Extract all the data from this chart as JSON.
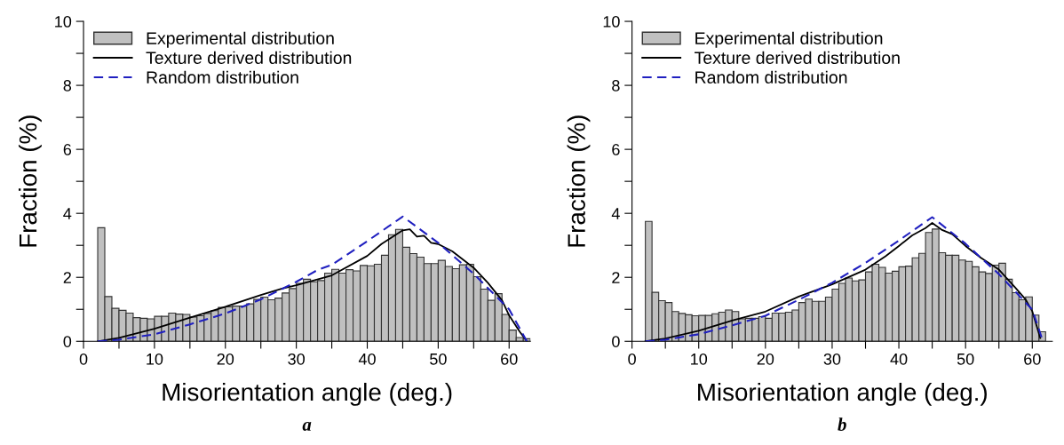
{
  "chart_data": [
    {
      "type": "histogram",
      "xlabel": "Misorientation angle (deg.)",
      "ylabel": "Fraction (%)",
      "annotations": [
        "a"
      ],
      "xlim": [
        0,
        63
      ],
      "ylim": [
        0,
        10
      ],
      "xticks": [
        0,
        {
          "value": 5,
          "label": null
        },
        10,
        {
          "value": 15,
          "label": null
        },
        20,
        {
          "value": 25,
          "label": null
        },
        30,
        {
          "value": 35,
          "label": null
        },
        40,
        {
          "value": 45,
          "label": null
        },
        50,
        {
          "value": 55,
          "label": null
        },
        60
      ],
      "yticks": [
        0,
        {
          "value": 1,
          "label": null
        },
        2,
        {
          "value": 3,
          "label": null
        },
        4,
        {
          "value": 5,
          "label": null
        },
        6,
        {
          "value": 7,
          "label": null
        },
        8,
        {
          "value": 9,
          "label": null
        },
        10
      ],
      "legend": "top left",
      "grid": false,
      "bins": [
        2,
        3,
        4,
        5,
        6,
        7,
        8,
        9,
        10,
        11,
        12,
        13,
        14,
        15,
        16,
        17,
        18,
        19,
        20,
        21,
        22,
        23,
        24,
        25,
        26,
        27,
        28,
        29,
        30,
        31,
        32,
        33,
        34,
        35,
        36,
        37,
        38,
        39,
        40,
        41,
        42,
        43,
        44,
        45,
        46,
        47,
        48,
        49,
        50,
        51,
        52,
        53,
        54,
        55,
        56,
        57,
        58,
        59,
        60,
        61,
        62,
        63
      ],
      "series": [
        {
          "name": "Experimental distribution",
          "color": "#c0c0c0",
          "values": [
            3.55,
            1.4,
            1.03,
            0.97,
            0.88,
            0.74,
            0.72,
            0.7,
            0.78,
            0.78,
            0.88,
            0.85,
            0.84,
            0.76,
            0.8,
            0.87,
            0.96,
            1.06,
            1.08,
            1.1,
            1.1,
            1.17,
            1.31,
            1.38,
            1.3,
            1.35,
            1.51,
            1.65,
            1.81,
            1.94,
            1.86,
            1.9,
            2.13,
            2.25,
            2.13,
            2.24,
            2.2,
            2.37,
            2.36,
            2.41,
            2.69,
            3.33,
            3.5,
            2.94,
            2.74,
            2.63,
            2.43,
            2.43,
            2.53,
            2.34,
            2.27,
            2.39,
            2.41,
            2.02,
            1.63,
            1.28,
            1.49,
            0.84,
            0.35,
            0.12,
            0.08
          ]
        },
        {
          "name": "Texture derived distribution",
          "type": "line",
          "color": "#000000",
          "line_style": "solid",
          "x": [
            2,
            5,
            10,
            15,
            20,
            25,
            28,
            30,
            35,
            40,
            42,
            45,
            46,
            47,
            48,
            49,
            50,
            52,
            55,
            57,
            59,
            60,
            61.5,
            62.5
          ],
          "values": [
            0,
            0.11,
            0.39,
            0.74,
            1.08,
            1.45,
            1.65,
            1.75,
            2.06,
            2.67,
            3.04,
            3.47,
            3.5,
            3.27,
            3.3,
            3.08,
            3.04,
            2.81,
            2.3,
            1.83,
            1.28,
            0.81,
            0.3,
            0
          ]
        },
        {
          "name": "Random distribution",
          "type": "line",
          "color": "#2020c0",
          "line_style": "dashed",
          "x": [
            2,
            5,
            10,
            15,
            20,
            25,
            30,
            33,
            35,
            40,
            45,
            50,
            55,
            60,
            62.5
          ],
          "values": [
            0,
            0.05,
            0.22,
            0.53,
            0.87,
            1.31,
            1.86,
            2.23,
            2.39,
            3.13,
            3.9,
            3.08,
            2.11,
            1.0,
            0
          ]
        }
      ]
    },
    {
      "type": "histogram",
      "xlabel": "Misorientation angle (deg.)",
      "ylabel": "Fraction (%)",
      "annotations": [
        "b"
      ],
      "xlim": [
        0,
        63
      ],
      "ylim": [
        0,
        10
      ],
      "xticks": [
        0,
        {
          "value": 5,
          "label": null
        },
        10,
        {
          "value": 15,
          "label": null
        },
        20,
        {
          "value": 25,
          "label": null
        },
        30,
        {
          "value": 35,
          "label": null
        },
        40,
        {
          "value": 45,
          "label": null
        },
        50,
        {
          "value": 55,
          "label": null
        },
        60
      ],
      "yticks": [
        0,
        {
          "value": 1,
          "label": null
        },
        2,
        {
          "value": 3,
          "label": null
        },
        4,
        {
          "value": 5,
          "label": null
        },
        6,
        {
          "value": 7,
          "label": null
        },
        8,
        {
          "value": 9,
          "label": null
        },
        10
      ],
      "legend": "top left",
      "grid": false,
      "bins": [
        2,
        3,
        4,
        5,
        6,
        7,
        8,
        9,
        10,
        11,
        12,
        13,
        14,
        15,
        16,
        17,
        18,
        19,
        20,
        21,
        22,
        23,
        24,
        25,
        26,
        27,
        28,
        29,
        30,
        31,
        32,
        33,
        34,
        35,
        36,
        37,
        38,
        39,
        40,
        41,
        42,
        43,
        44,
        45,
        46,
        47,
        48,
        49,
        50,
        51,
        52,
        53,
        54,
        55,
        56,
        57,
        58,
        59,
        60,
        61,
        62
      ],
      "series": [
        {
          "name": "Experimental distribution",
          "color": "#c0c0c0",
          "values": [
            3.75,
            1.53,
            1.27,
            1.21,
            0.93,
            0.87,
            0.83,
            0.8,
            0.81,
            0.81,
            0.86,
            0.91,
            0.98,
            0.93,
            0.7,
            0.72,
            0.72,
            0.77,
            0.72,
            0.88,
            0.88,
            0.91,
            0.98,
            1.21,
            1.32,
            1.25,
            1.25,
            1.38,
            1.63,
            1.81,
            1.98,
            1.89,
            1.92,
            2.17,
            2.41,
            2.31,
            2.13,
            2.19,
            2.33,
            2.35,
            2.61,
            2.75,
            3.4,
            3.51,
            2.77,
            2.69,
            2.69,
            2.54,
            2.5,
            2.33,
            2.17,
            2.12,
            2.38,
            2.44,
            1.94,
            1.52,
            1.3,
            1.39,
            0.82,
            0.3
          ]
        },
        {
          "name": "Texture derived distribution",
          "type": "line",
          "color": "#000000",
          "line_style": "solid",
          "x": [
            2,
            5,
            10,
            15,
            20,
            25,
            30,
            35,
            38,
            40,
            42,
            44,
            45,
            46.4,
            48,
            50,
            52.3,
            55,
            57.4,
            59,
            60,
            61.2
          ],
          "values": [
            0,
            0.09,
            0.33,
            0.65,
            0.93,
            1.4,
            1.78,
            2.24,
            2.66,
            2.98,
            3.31,
            3.54,
            3.7,
            3.49,
            3.35,
            2.98,
            2.61,
            2.24,
            1.69,
            1.31,
            0.94,
            0.1
          ]
        },
        {
          "name": "Random distribution",
          "type": "line",
          "color": "#2020c0",
          "line_style": "dashed",
          "x": [
            2,
            5,
            10,
            15,
            20,
            25,
            30,
            35,
            40,
            45,
            50,
            55,
            60,
            61.5
          ],
          "values": [
            0,
            0.05,
            0.22,
            0.5,
            0.8,
            1.3,
            1.83,
            2.45,
            3.15,
            3.88,
            3.05,
            2.1,
            0.99,
            0.06
          ]
        }
      ]
    }
  ]
}
